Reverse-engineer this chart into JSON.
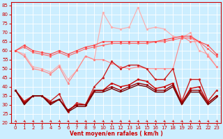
{
  "title": "",
  "xlabel": "Vent moyen/en rafales ( km/h )",
  "x": [
    0,
    1,
    2,
    3,
    4,
    5,
    6,
    7,
    8,
    9,
    10,
    11,
    12,
    13,
    14,
    15,
    16,
    17,
    18,
    19,
    20,
    21,
    22,
    23
  ],
  "series": [
    {
      "color": "#ffaaaa",
      "linewidth": 0.8,
      "marker": "o",
      "markersize": 2.0,
      "values": [
        60,
        58,
        51,
        50,
        48,
        52,
        44,
        49,
        57,
        55,
        81,
        73,
        72,
        73,
        84,
        72,
        73,
        72,
        68,
        67,
        70,
        60,
        58,
        51
      ]
    },
    {
      "color": "#ff8888",
      "linewidth": 0.8,
      "marker": "o",
      "markersize": 2.0,
      "values": [
        60,
        57,
        50,
        49,
        47,
        51,
        42,
        49,
        57,
        55,
        55,
        53,
        51,
        50,
        51,
        50,
        50,
        50,
        50,
        68,
        65,
        65,
        57,
        51
      ]
    },
    {
      "color": "#ff6666",
      "linewidth": 0.8,
      "marker": "o",
      "markersize": 2.0,
      "values": [
        60,
        62,
        59,
        58,
        57,
        59,
        57,
        59,
        61,
        62,
        63,
        64,
        64,
        64,
        64,
        64,
        65,
        65,
        66,
        67,
        67,
        65,
        61,
        57
      ]
    },
    {
      "color": "#ff4444",
      "linewidth": 0.8,
      "marker": "o",
      "markersize": 2.0,
      "values": [
        60,
        63,
        60,
        59,
        58,
        60,
        58,
        60,
        62,
        63,
        65,
        65,
        65,
        65,
        65,
        65,
        65,
        66,
        67,
        68,
        68,
        65,
        63,
        58
      ]
    },
    {
      "color": "#cc2222",
      "linewidth": 1.0,
      "marker": "o",
      "markersize": 2.0,
      "values": [
        38,
        32,
        35,
        35,
        32,
        36,
        26,
        31,
        30,
        40,
        45,
        54,
        50,
        52,
        52,
        50,
        44,
        44,
        50,
        32,
        44,
        44,
        32,
        38
      ]
    },
    {
      "color": "#cc0000",
      "linewidth": 1.0,
      "marker": "o",
      "markersize": 2.0,
      "values": [
        38,
        31,
        35,
        35,
        31,
        33,
        27,
        30,
        30,
        38,
        38,
        42,
        40,
        41,
        44,
        43,
        39,
        40,
        42,
        31,
        39,
        40,
        31,
        35
      ]
    },
    {
      "color": "#990000",
      "linewidth": 1.0,
      "marker": "o",
      "markersize": 2.0,
      "values": [
        38,
        31,
        35,
        35,
        31,
        33,
        27,
        30,
        30,
        38,
        38,
        40,
        38,
        40,
        42,
        41,
        38,
        38,
        41,
        31,
        38,
        38,
        31,
        35
      ]
    },
    {
      "color": "#770000",
      "linewidth": 1.0,
      "marker": null,
      "markersize": 0,
      "values": [
        38,
        30,
        35,
        35,
        30,
        33,
        26,
        29,
        29,
        37,
        37,
        39,
        37,
        39,
        41,
        40,
        37,
        37,
        40,
        30,
        37,
        37,
        30,
        34
      ]
    }
  ],
  "ylim": [
    20,
    87
  ],
  "yticks": [
    20,
    25,
    30,
    35,
    40,
    45,
    50,
    55,
    60,
    65,
    70,
    75,
    80,
    85
  ],
  "xlim": [
    -0.5,
    23.5
  ],
  "xticks": [
    0,
    1,
    2,
    3,
    4,
    5,
    6,
    7,
    8,
    9,
    10,
    11,
    12,
    13,
    14,
    15,
    16,
    17,
    18,
    19,
    20,
    21,
    22,
    23
  ],
  "bg_color": "#cceeff",
  "grid_color": "#ffffff",
  "tick_color": "#cc0000",
  "label_color": "#cc0000",
  "spine_color": "#cc0000"
}
